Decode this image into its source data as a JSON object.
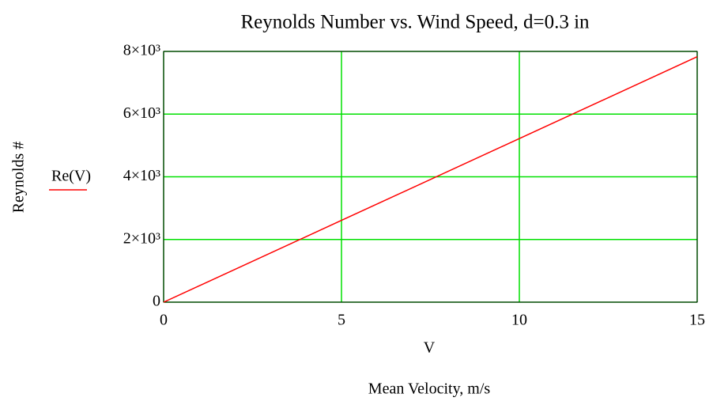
{
  "chart_data": {
    "type": "line",
    "title": "Reynolds Number vs. Wind Speed, d=0.3 in",
    "x_label": "V",
    "x_title": "Mean Velocity, m/s",
    "y_label": "Reynolds #",
    "x": [
      0,
      5,
      10,
      15
    ],
    "series": [
      {
        "name": "Re(V)",
        "color": "#ff0000",
        "values": [
          0,
          2610,
          5220,
          7830
        ]
      }
    ],
    "xlim": [
      0,
      15
    ],
    "xticks": [
      0,
      5,
      10,
      15
    ],
    "ylim": [
      0,
      8000
    ],
    "yticks": [
      0,
      {
        "value": 2000,
        "label": "2×10³"
      },
      {
        "value": 4000,
        "label": "4×10³"
      },
      {
        "value": 6000,
        "label": "6×10³"
      },
      {
        "value": 8000,
        "label": "8×10³"
      }
    ],
    "grid": true,
    "grid_color": "#00e000",
    "legend": "left"
  }
}
